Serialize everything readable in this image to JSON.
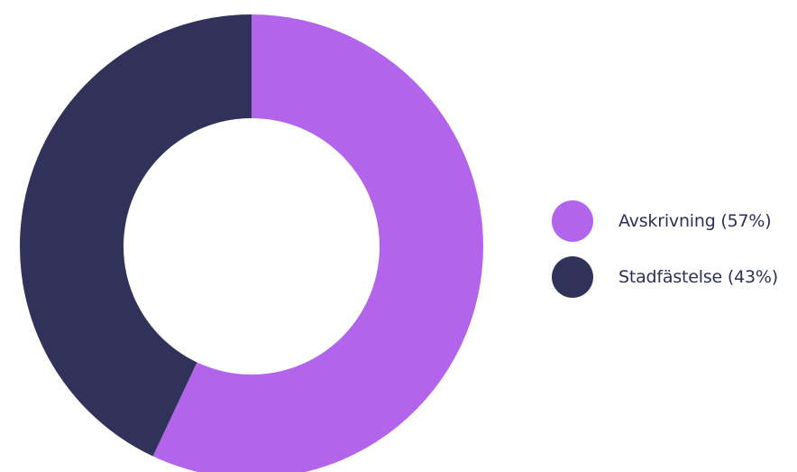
{
  "chart_data": {
    "type": "pie",
    "variant": "donut",
    "categories": [
      "Avskrivning",
      "Stadfästelse"
    ],
    "values": [
      57,
      43
    ],
    "colors": [
      "#b264ea",
      "#30325a"
    ],
    "legend": {
      "placement": "right",
      "items": [
        {
          "label": "Avskrivning (57%)",
          "color": "#b264ea"
        },
        {
          "label": "Stadfästelse (43%)",
          "color": "#30325a"
        }
      ]
    }
  }
}
